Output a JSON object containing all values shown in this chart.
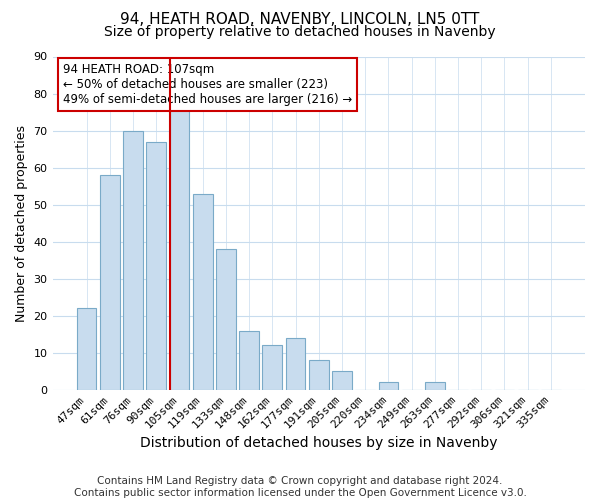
{
  "title": "94, HEATH ROAD, NAVENBY, LINCOLN, LN5 0TT",
  "subtitle": "Size of property relative to detached houses in Navenby",
  "xlabel": "Distribution of detached houses by size in Navenby",
  "ylabel": "Number of detached properties",
  "bar_labels": [
    "47sqm",
    "61sqm",
    "76sqm",
    "90sqm",
    "105sqm",
    "119sqm",
    "133sqm",
    "148sqm",
    "162sqm",
    "177sqm",
    "191sqm",
    "205sqm",
    "220sqm",
    "234sqm",
    "249sqm",
    "263sqm",
    "277sqm",
    "292sqm",
    "306sqm",
    "321sqm",
    "335sqm"
  ],
  "bar_heights": [
    22,
    58,
    70,
    67,
    76,
    53,
    38,
    16,
    12,
    14,
    8,
    5,
    0,
    2,
    0,
    2,
    0,
    0,
    0,
    0,
    0
  ],
  "bar_color": "#c8dcee",
  "bar_edge_color": "#7aaac8",
  "highlight_index": 4,
  "vline_color": "#cc0000",
  "ylim": [
    0,
    90
  ],
  "yticks": [
    0,
    10,
    20,
    30,
    40,
    50,
    60,
    70,
    80,
    90
  ],
  "annotation_title": "94 HEATH ROAD: 107sqm",
  "annotation_line1": "← 50% of detached houses are smaller (223)",
  "annotation_line2": "49% of semi-detached houses are larger (216) →",
  "annotation_box_color": "#ffffff",
  "annotation_box_edge": "#cc0000",
  "footer1": "Contains HM Land Registry data © Crown copyright and database right 2024.",
  "footer2": "Contains public sector information licensed under the Open Government Licence v3.0.",
  "background_color": "#ffffff",
  "grid_color": "#c8dcee",
  "title_fontsize": 11,
  "subtitle_fontsize": 10,
  "xlabel_fontsize": 10,
  "ylabel_fontsize": 9,
  "tick_fontsize": 8,
  "annotation_fontsize": 8.5,
  "footer_fontsize": 7.5
}
